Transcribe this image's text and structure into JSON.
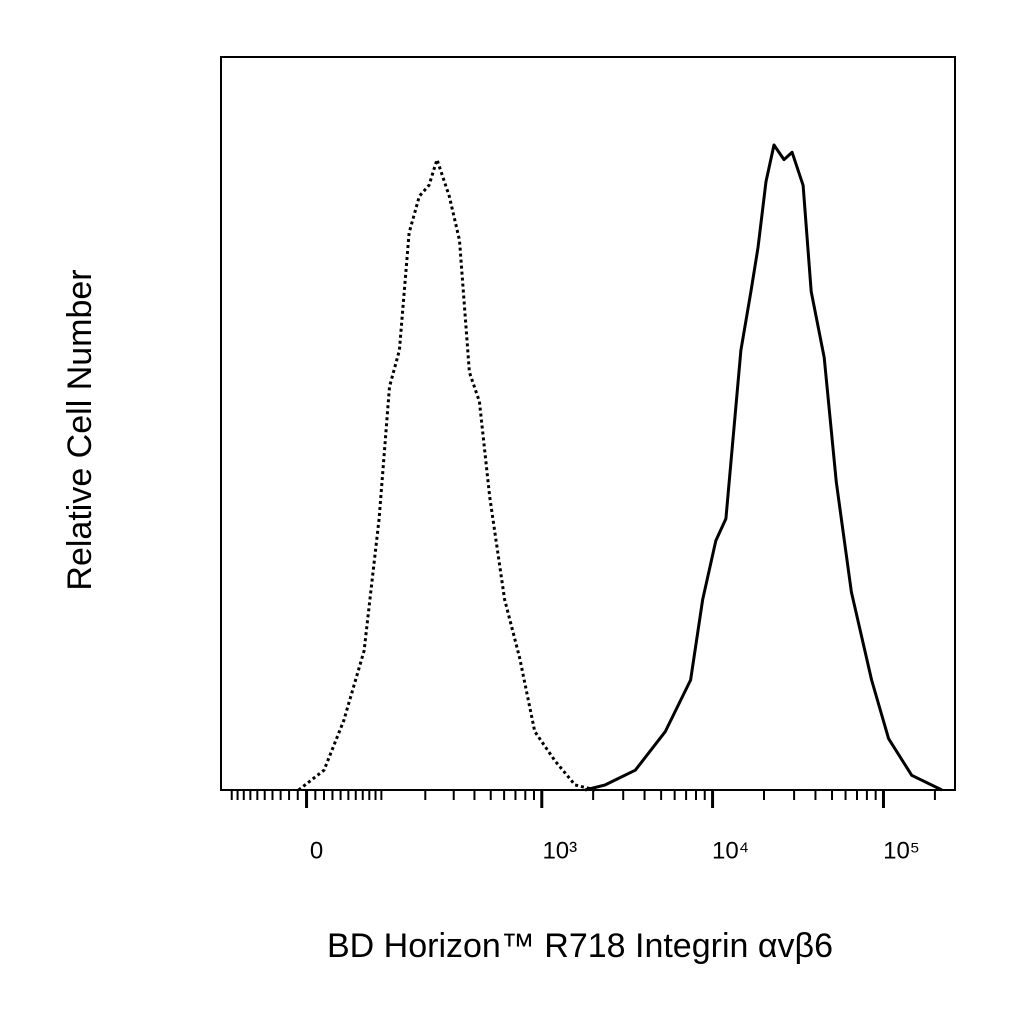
{
  "chart_data": {
    "type": "histogram-overlay",
    "x_label": "BD Horizon™ R718 Integrin αvβ6",
    "y_label": "Relative Cell Number",
    "x_scale": "biexponential",
    "xlim": [
      -120,
      262144
    ],
    "ylim": [
      0,
      100
    ],
    "xticks": [
      0,
      {
        "value": 1000,
        "label": "10³"
      },
      {
        "value": 10000,
        "label": "10⁴"
      },
      {
        "value": 100000,
        "label": "10⁵"
      }
    ],
    "x_minor_ticks": [
      -100,
      -90,
      -80,
      -70,
      -60,
      -50,
      -40,
      -30,
      -20,
      -10,
      10,
      20,
      30,
      40,
      50,
      60,
      70,
      80,
      90,
      100,
      200,
      300,
      400,
      500,
      600,
      700,
      800,
      900,
      2000,
      3000,
      4000,
      5000,
      6000,
      7000,
      8000,
      9000,
      20000,
      30000,
      40000,
      50000,
      60000,
      70000,
      80000,
      90000,
      200000
    ],
    "series": [
      {
        "color": "#000000",
        "dashed": true,
        "x": [
          -9,
          20,
          44,
          72,
          96,
          115,
          135,
          157,
          183,
          211,
          237,
          282,
          325,
          373,
          428,
          493,
          604,
          742,
          909,
          1193,
          1566,
          2054
        ],
        "values": [
          0,
          2.7,
          9.5,
          19,
          37,
          55,
          60,
          76,
          81,
          82.5,
          86,
          81,
          75,
          57,
          53,
          40,
          26,
          18,
          8,
          4,
          0.7,
          0
        ]
      },
      {
        "color": "#000000",
        "dashed": false,
        "x": [
          1793,
          2352,
          3532,
          5300,
          7435,
          8750,
          10440,
          11960,
          14650,
          16760,
          18440,
          20540,
          22870,
          26190,
          29200,
          33880,
          37770,
          45010,
          53000,
          64920,
          85170,
          107200,
          146300,
          219800
        ],
        "values": [
          0,
          0.7,
          2.7,
          8,
          15,
          26,
          34,
          37,
          60,
          68,
          74,
          83,
          88,
          86,
          87,
          82.5,
          68,
          59,
          42,
          27,
          15,
          7,
          2,
          0
        ]
      }
    ]
  }
}
